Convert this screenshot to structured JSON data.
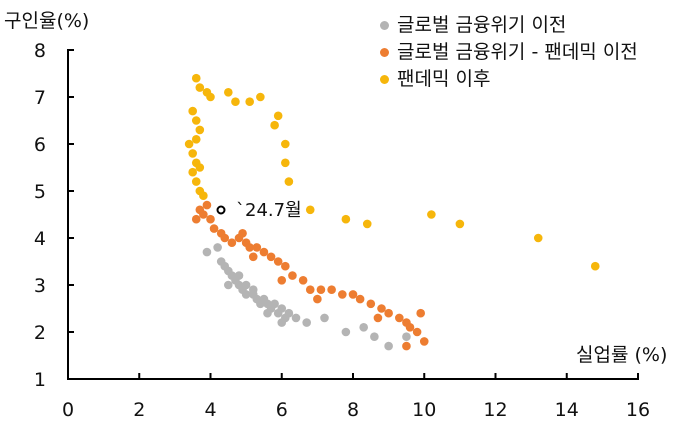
{
  "chart_data": {
    "type": "scatter",
    "title": "",
    "xlabel": "실업률 (%)",
    "ylabel": "구인율(%)",
    "xlim": [
      0,
      16
    ],
    "ylim": [
      1,
      8
    ],
    "xticks": [
      0,
      2,
      4,
      6,
      8,
      10,
      12,
      14,
      16
    ],
    "yticks": [
      1,
      2,
      3,
      4,
      5,
      6,
      7,
      8
    ],
    "grid": false,
    "legend_position": "top-right",
    "annotations": [
      {
        "text": "`24.7월",
        "x": 4.3,
        "y": 4.6
      }
    ],
    "series": [
      {
        "name": "글로벌 금융위기 이전",
        "color": "#b4b4b4",
        "points": [
          [
            3.9,
            3.7
          ],
          [
            4.2,
            3.8
          ],
          [
            4.3,
            3.5
          ],
          [
            4.4,
            3.4
          ],
          [
            4.5,
            3.3
          ],
          [
            4.6,
            3.2
          ],
          [
            4.5,
            3.0
          ],
          [
            4.7,
            3.1
          ],
          [
            4.8,
            3.0
          ],
          [
            4.9,
            2.9
          ],
          [
            5.0,
            3.0
          ],
          [
            5.0,
            2.8
          ],
          [
            5.2,
            2.8
          ],
          [
            5.3,
            2.7
          ],
          [
            5.4,
            2.6
          ],
          [
            5.5,
            2.7
          ],
          [
            5.6,
            2.6
          ],
          [
            5.7,
            2.5
          ],
          [
            5.8,
            2.6
          ],
          [
            5.9,
            2.4
          ],
          [
            6.0,
            2.5
          ],
          [
            6.1,
            2.3
          ],
          [
            6.2,
            2.4
          ],
          [
            6.4,
            2.3
          ],
          [
            6.7,
            2.2
          ],
          [
            7.2,
            2.3
          ],
          [
            7.8,
            2.0
          ],
          [
            8.3,
            2.1
          ],
          [
            8.6,
            1.9
          ],
          [
            9.0,
            1.7
          ],
          [
            9.5,
            1.9
          ],
          [
            5.2,
            2.9
          ],
          [
            4.8,
            3.2
          ],
          [
            5.6,
            2.4
          ],
          [
            6.0,
            2.2
          ]
        ]
      },
      {
        "name": "글로벌 금융위기 - 팬데믹 이전",
        "color": "#ed7d31",
        "points": [
          [
            3.6,
            4.4
          ],
          [
            3.7,
            4.6
          ],
          [
            3.8,
            4.5
          ],
          [
            3.9,
            4.7
          ],
          [
            4.0,
            4.4
          ],
          [
            4.1,
            4.2
          ],
          [
            4.3,
            4.1
          ],
          [
            4.4,
            4.0
          ],
          [
            4.6,
            3.9
          ],
          [
            4.8,
            4.0
          ],
          [
            5.0,
            3.9
          ],
          [
            5.1,
            3.8
          ],
          [
            5.3,
            3.8
          ],
          [
            5.5,
            3.7
          ],
          [
            5.7,
            3.6
          ],
          [
            5.9,
            3.5
          ],
          [
            6.1,
            3.4
          ],
          [
            6.3,
            3.2
          ],
          [
            6.6,
            3.1
          ],
          [
            6.8,
            2.9
          ],
          [
            7.1,
            2.9
          ],
          [
            7.4,
            2.9
          ],
          [
            7.7,
            2.8
          ],
          [
            8.0,
            2.8
          ],
          [
            8.2,
            2.7
          ],
          [
            8.5,
            2.6
          ],
          [
            8.8,
            2.5
          ],
          [
            9.0,
            2.4
          ],
          [
            9.3,
            2.3
          ],
          [
            9.5,
            2.2
          ],
          [
            9.6,
            2.1
          ],
          [
            9.8,
            2.0
          ],
          [
            10.0,
            1.8
          ],
          [
            9.5,
            1.7
          ],
          [
            9.9,
            2.4
          ],
          [
            4.9,
            4.1
          ],
          [
            5.2,
            3.6
          ],
          [
            6.0,
            3.1
          ],
          [
            7.0,
            2.7
          ],
          [
            8.7,
            2.3
          ]
        ]
      },
      {
        "name": "팬데믹 이후",
        "color": "#f6b60b",
        "points": [
          [
            3.6,
            7.4
          ],
          [
            3.7,
            7.2
          ],
          [
            3.9,
            7.1
          ],
          [
            4.0,
            7.0
          ],
          [
            4.5,
            7.1
          ],
          [
            4.7,
            6.9
          ],
          [
            5.1,
            6.9
          ],
          [
            5.4,
            7.0
          ],
          [
            3.5,
            6.7
          ],
          [
            3.6,
            6.5
          ],
          [
            3.7,
            6.3
          ],
          [
            3.6,
            6.1
          ],
          [
            3.4,
            6.0
          ],
          [
            3.5,
            5.8
          ],
          [
            3.6,
            5.6
          ],
          [
            3.7,
            5.5
          ],
          [
            3.5,
            5.4
          ],
          [
            3.6,
            5.2
          ],
          [
            3.7,
            5.0
          ],
          [
            3.8,
            4.9
          ],
          [
            5.9,
            6.6
          ],
          [
            5.8,
            6.4
          ],
          [
            6.1,
            6.0
          ],
          [
            6.1,
            5.6
          ],
          [
            6.2,
            5.2
          ],
          [
            6.8,
            4.6
          ],
          [
            7.8,
            4.4
          ],
          [
            8.4,
            4.3
          ],
          [
            10.2,
            4.5
          ],
          [
            11.0,
            4.3
          ],
          [
            13.2,
            4.0
          ],
          [
            14.8,
            3.4
          ]
        ]
      }
    ]
  }
}
